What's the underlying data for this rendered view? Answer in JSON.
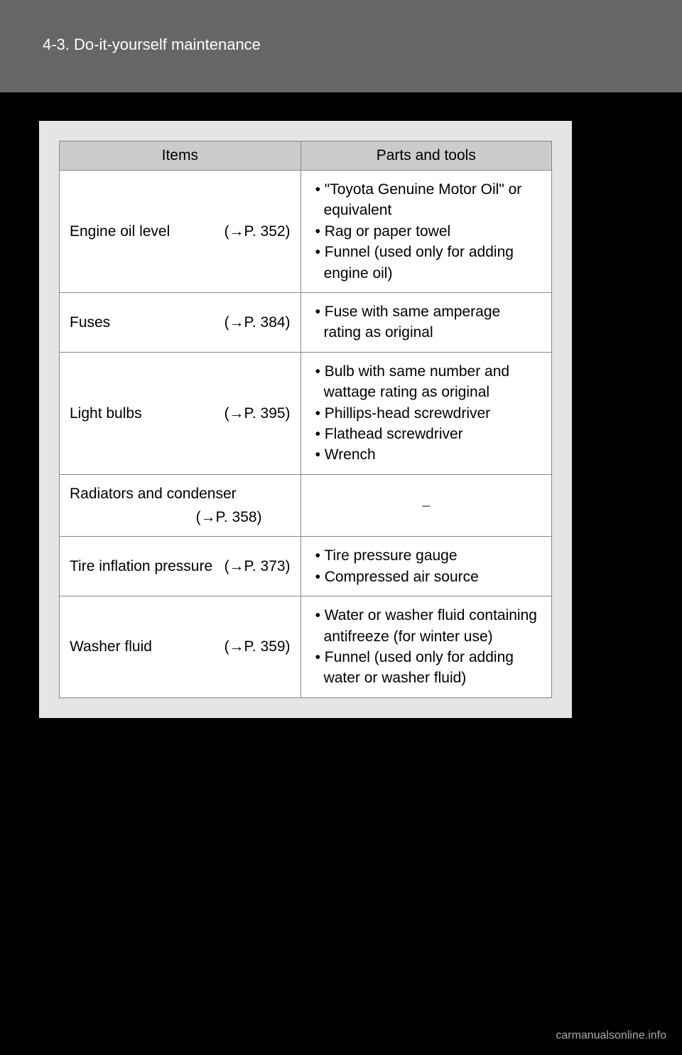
{
  "header": {
    "section": "4-3. Do-it-yourself maintenance"
  },
  "table": {
    "header_items": "Items",
    "header_tools": "Parts and tools",
    "rows": [
      {
        "item": "Engine oil level",
        "ref": "(→P. 352)",
        "tools": [
          "\"Toyota Genuine Motor Oil\" or equivalent",
          "Rag or paper towel",
          "Funnel (used only for adding engine oil)"
        ]
      },
      {
        "item": "Fuses",
        "ref": "(→P. 384)",
        "tools": [
          "Fuse with same amperage rating as original"
        ]
      },
      {
        "item": "Light bulbs",
        "ref": "(→P. 395)",
        "tools": [
          "Bulb with same number and wattage rating as original",
          "Phillips-head screwdriver",
          "Flathead screwdriver",
          "Wrench"
        ]
      },
      {
        "item": "Radiators and condenser",
        "ref": "(→P. 358)",
        "tools_dash": "⎯"
      },
      {
        "item": "Tire inflation pressure",
        "ref": "(→P. 373)",
        "tools": [
          "Tire pressure gauge",
          "Compressed air source"
        ]
      },
      {
        "item": "Washer fluid",
        "ref": "(→P. 359)",
        "tools": [
          "Water or washer fluid containing antifreeze (for winter use)",
          "Funnel (used only for adding water or washer fluid)"
        ]
      }
    ]
  },
  "watermark": "carmanualsonline.info",
  "colors": {
    "page_bg": "#000000",
    "header_band": "#666666",
    "header_text": "#ffffff",
    "panel_bg": "#e5e5e5",
    "table_bg": "#ffffff",
    "th_bg": "#cccccc",
    "border": "#888888",
    "text": "#000000",
    "watermark": "#aaaaaa"
  }
}
